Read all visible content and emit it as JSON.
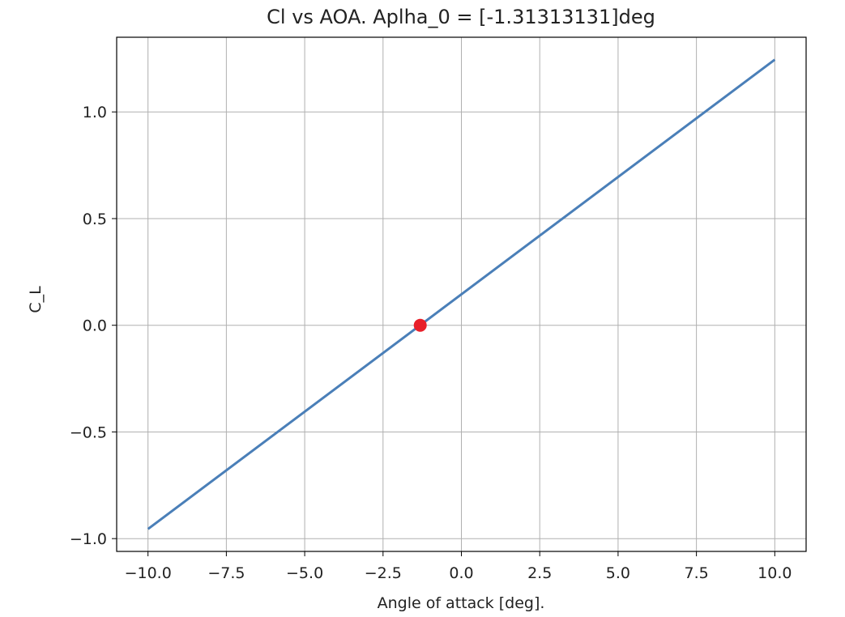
{
  "chart_data": {
    "type": "line",
    "title": "Cl vs AOA. Aplha_0 = [-1.31313131]deg",
    "xlabel": "Angle of attack [deg].",
    "ylabel": "C_L",
    "xlim": [
      -11.0,
      11.0
    ],
    "ylim": [
      -1.06,
      1.35
    ],
    "grid": true,
    "xticks": [
      -10.0,
      -7.5,
      -5.0,
      -2.5,
      0.0,
      2.5,
      5.0,
      7.5,
      10.0
    ],
    "xtick_labels": [
      "−10.0",
      "−7.5",
      "−5.0",
      "−2.5",
      "0.0",
      "2.5",
      "5.0",
      "7.5",
      "10.0"
    ],
    "yticks": [
      -1.0,
      -0.5,
      0.0,
      0.5,
      1.0
    ],
    "ytick_labels": [
      "−1.0",
      "−0.5",
      "0.0",
      "0.5",
      "1.0"
    ],
    "series": [
      {
        "type": "line",
        "color": "#4a7fb8",
        "x": [
          -10.0,
          10.0
        ],
        "y": [
          -0.955,
          1.245
        ]
      },
      {
        "type": "scatter",
        "color": "#e8202a",
        "x": [
          -1.31313131
        ],
        "y": [
          0.0
        ]
      }
    ]
  }
}
